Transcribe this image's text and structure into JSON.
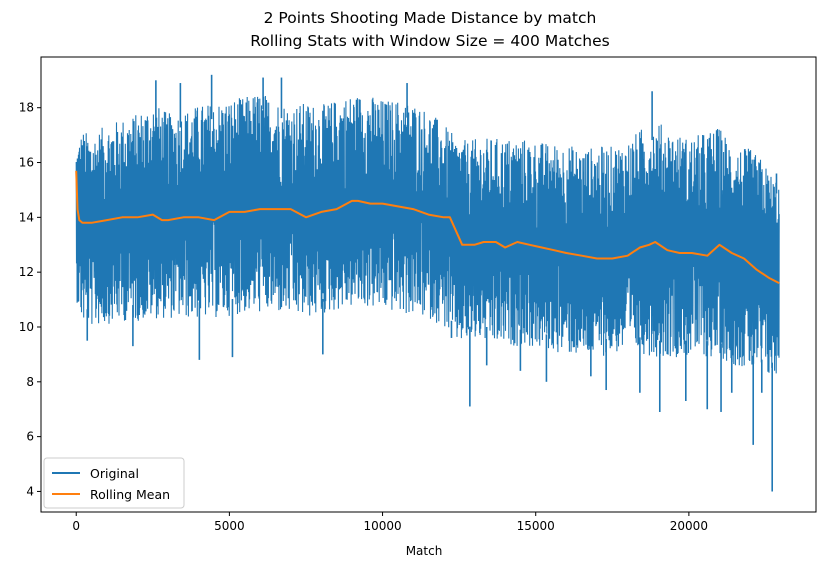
{
  "chart_data": {
    "type": "line",
    "title": "2 Points Shooting Made Distance by match",
    "subtitle": "Rolling Stats with Window Size = 400 Matches",
    "xlabel": "Match",
    "ylabel": "",
    "xlim": [
      -1150,
      24150
    ],
    "ylim": [
      3.25,
      19.85
    ],
    "xticks": [
      0,
      5000,
      10000,
      15000,
      20000
    ],
    "yticks": [
      4,
      6,
      8,
      10,
      12,
      14,
      16,
      18
    ],
    "grid": false,
    "legend_position": "lower-left",
    "series": [
      {
        "name": "Original",
        "color": "#1f77b4",
        "envelope": {
          "x": [
            0,
            200,
            500,
            1000,
            1500,
            2000,
            2500,
            3000,
            3500,
            4000,
            4500,
            5000,
            5500,
            6000,
            6500,
            7000,
            7500,
            8000,
            8500,
            9000,
            9500,
            10000,
            10500,
            11000,
            11500,
            12000,
            12400,
            12800,
            13200,
            13600,
            14000,
            14500,
            15000,
            15500,
            16000,
            16500,
            17000,
            17500,
            18000,
            18500,
            19000,
            19500,
            20000,
            20500,
            21000,
            21500,
            22000,
            22400,
            22700,
            22950
          ],
          "upper": [
            16.6,
            17.2,
            17.0,
            17.4,
            17.6,
            17.8,
            18.2,
            17.8,
            17.9,
            18.1,
            18.2,
            18.3,
            18.4,
            18.6,
            18.3,
            18.1,
            18.2,
            18.1,
            18.3,
            18.5,
            18.5,
            18.3,
            18.3,
            18.2,
            17.9,
            17.4,
            16.9,
            16.8,
            16.9,
            16.9,
            16.9,
            16.9,
            16.8,
            16.7,
            16.7,
            16.5,
            16.6,
            16.6,
            16.8,
            17.3,
            17.5,
            17.1,
            16.9,
            17.1,
            17.3,
            16.6,
            16.5,
            16.1,
            15.6,
            15.4
          ],
          "lower": [
            11.0,
            10.1,
            10.0,
            10.1,
            10.2,
            10.2,
            10.3,
            10.3,
            10.3,
            10.3,
            10.3,
            10.4,
            10.5,
            10.5,
            10.5,
            10.4,
            10.3,
            10.4,
            10.6,
            10.7,
            10.7,
            10.6,
            10.5,
            10.4,
            10.3,
            10.0,
            9.4,
            9.4,
            9.5,
            9.3,
            9.3,
            9.3,
            9.2,
            9.1,
            9.0,
            8.9,
            8.9,
            9.0,
            9.1,
            9.0,
            8.9,
            8.9,
            8.9,
            8.9,
            8.8,
            8.6,
            8.4,
            8.2,
            8.1,
            8.1
          ]
        },
        "spikes": [
          {
            "x": 360,
            "y": 9.5
          },
          {
            "x": 1850,
            "y": 9.3
          },
          {
            "x": 2600,
            "y": 19.0
          },
          {
            "x": 3400,
            "y": 18.9
          },
          {
            "x": 4020,
            "y": 8.8
          },
          {
            "x": 4420,
            "y": 19.2
          },
          {
            "x": 5100,
            "y": 8.9
          },
          {
            "x": 6100,
            "y": 19.1
          },
          {
            "x": 6700,
            "y": 19.1
          },
          {
            "x": 8050,
            "y": 9.0
          },
          {
            "x": 10800,
            "y": 18.9
          },
          {
            "x": 12250,
            "y": 9.6
          },
          {
            "x": 12850,
            "y": 7.1
          },
          {
            "x": 13400,
            "y": 8.6
          },
          {
            "x": 14500,
            "y": 8.4
          },
          {
            "x": 15350,
            "y": 8.0
          },
          {
            "x": 16800,
            "y": 8.2
          },
          {
            "x": 17300,
            "y": 7.7
          },
          {
            "x": 18400,
            "y": 7.6
          },
          {
            "x": 18800,
            "y": 18.6
          },
          {
            "x": 19050,
            "y": 6.9
          },
          {
            "x": 19900,
            "y": 7.3
          },
          {
            "x": 20600,
            "y": 7.0
          },
          {
            "x": 21050,
            "y": 6.9
          },
          {
            "x": 21400,
            "y": 7.6
          },
          {
            "x": 22100,
            "y": 5.7
          },
          {
            "x": 22380,
            "y": 7.6
          },
          {
            "x": 22720,
            "y": 4.0
          },
          {
            "x": 22860,
            "y": 15.6
          }
        ]
      },
      {
        "name": "Rolling Mean",
        "color": "#ff7f0e",
        "x": [
          0,
          40,
          100,
          200,
          500,
          1000,
          1500,
          2000,
          2500,
          2800,
          3000,
          3500,
          4000,
          4500,
          5000,
          5500,
          6000,
          6500,
          7000,
          7500,
          8000,
          8500,
          9000,
          9200,
          9600,
          10000,
          10500,
          11000,
          11500,
          12000,
          12200,
          12600,
          13000,
          13300,
          13700,
          14000,
          14400,
          14800,
          15200,
          15600,
          16000,
          16500,
          17000,
          17500,
          18000,
          18400,
          18700,
          18900,
          19300,
          19700,
          20100,
          20600,
          21000,
          21400,
          21800,
          22200,
          22600,
          22950
        ],
        "values": [
          15.7,
          14.3,
          13.9,
          13.8,
          13.8,
          13.9,
          14.0,
          14.0,
          14.1,
          13.9,
          13.9,
          14.0,
          14.0,
          13.9,
          14.2,
          14.2,
          14.3,
          14.3,
          14.3,
          14.0,
          14.2,
          14.3,
          14.6,
          14.6,
          14.5,
          14.5,
          14.4,
          14.3,
          14.1,
          14.0,
          14.0,
          13.0,
          13.0,
          13.1,
          13.1,
          12.9,
          13.1,
          13.0,
          12.9,
          12.8,
          12.7,
          12.6,
          12.5,
          12.5,
          12.6,
          12.9,
          13.0,
          13.1,
          12.8,
          12.7,
          12.7,
          12.6,
          13.0,
          12.7,
          12.5,
          12.1,
          11.8,
          11.6
        ]
      }
    ]
  }
}
